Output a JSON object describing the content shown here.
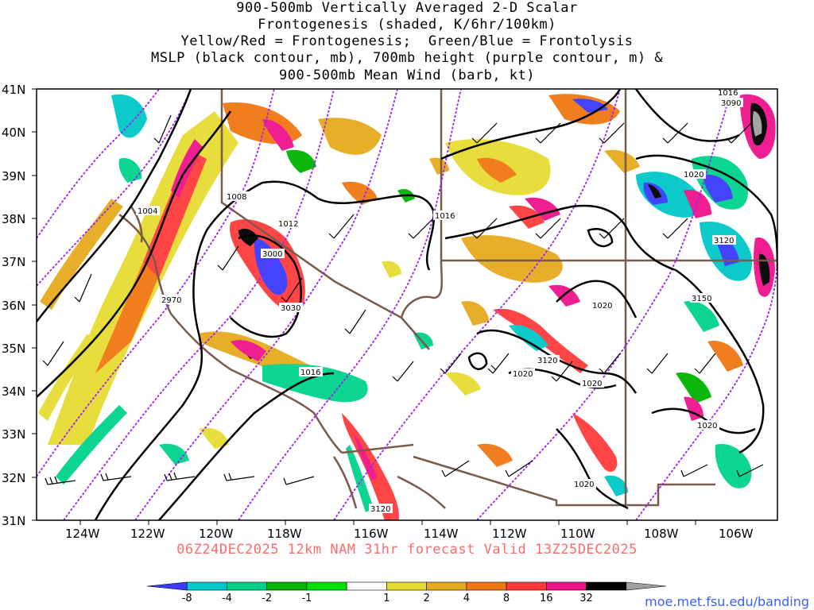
{
  "title": {
    "lines": [
      "900-500mb Vertically Averaged 2-D Scalar",
      "Frontogenesis (shaded, K/6hr/100km)",
      "Yellow/Red = Frontogenesis;  Green/Blue = Frontolysis",
      "MSLP (black contour, mb), 700mb height (purple contour, m) &",
      "900-500mb Mean Wind (barb, kt)"
    ]
  },
  "map": {
    "lat_labels": [
      "41N",
      "40N",
      "39N",
      "38N",
      "37N",
      "36N",
      "35N",
      "34N",
      "33N",
      "32N",
      "31N"
    ],
    "lon_labels": [
      "124W",
      "122W",
      "120W",
      "118W",
      "116W",
      "114W",
      "112W",
      "110W",
      "108W",
      "106W"
    ],
    "mslp_labels": [
      "1004",
      "1008",
      "1012",
      "1016",
      "1016",
      "1016",
      "1020",
      "1020",
      "1020",
      "1020",
      "1020",
      "1020"
    ],
    "height_labels": [
      "2970",
      "3000",
      "3030",
      "3090",
      "3120",
      "3120",
      "3120",
      "3150"
    ],
    "colors": {
      "mslp_contour": "#000000",
      "height_contour": "#a020f0",
      "state_border": "#7a5a4a"
    }
  },
  "valid_text": "06Z24DEC2025 12km NAM 31hr forecast Valid 13Z25DEC2025",
  "colorbar": {
    "labels": [
      "-8",
      "-4",
      "-2",
      "-1",
      "1",
      "2",
      "4",
      "8",
      "16",
      "32"
    ],
    "colors": [
      "#3b3bff",
      "#00c8c8",
      "#00d28c",
      "#00b400",
      "#00e000",
      "#ffffff",
      "#e6dc32",
      "#e6aa1e",
      "#f07814",
      "#ff3c3c",
      "#f0148c",
      "#000000",
      "#a0a0a0"
    ]
  },
  "credit": "moe.met.fsu.edu/banding"
}
